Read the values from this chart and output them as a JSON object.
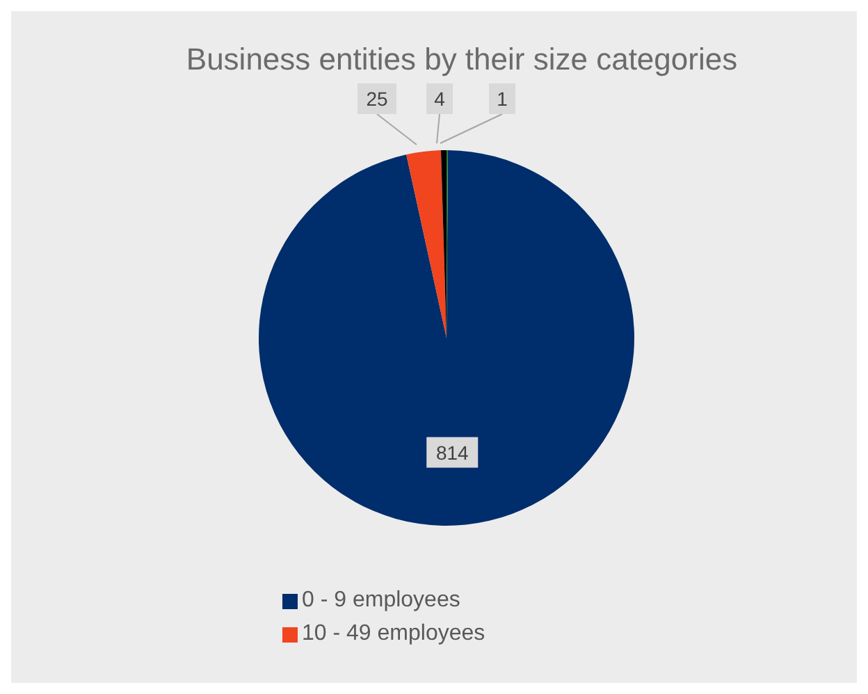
{
  "chart_data": {
    "type": "pie",
    "title": "Business entities by their size categories",
    "categories": [
      "0 - 9 employees",
      "10 - 49 employees",
      null,
      null
    ],
    "values": [
      814,
      25,
      4,
      1
    ],
    "colors": [
      "#002d6b",
      "#f0451f",
      "#000000",
      "#2e7d32"
    ],
    "data_labels": true,
    "legend": "bottom left"
  }
}
